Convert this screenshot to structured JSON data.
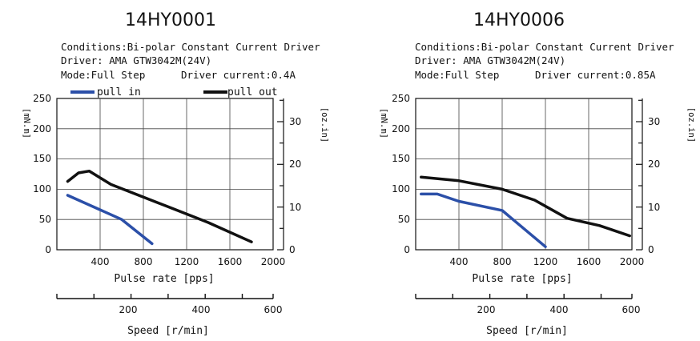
{
  "chart_data": [
    {
      "type": "line",
      "title": "14HY0001",
      "conditions": [
        "Conditions:Bi-polar Constant Current Driver",
        "Driver: AMA GTW3042M(24V)",
        "Mode:Full Step",
        "Driver current:0.4A"
      ],
      "xlabel": "Pulse rate [pps]",
      "ylabel_left": "[mN.m]",
      "ylabel_right": "[oz.in]",
      "speed_label": "Speed [r/min]",
      "xlim": [
        0,
        2000
      ],
      "ylim": [
        0,
        250
      ],
      "x_ticks": [
        "400",
        "800",
        "1200",
        "1600",
        "2000"
      ],
      "y_ticks": [
        "0",
        "50",
        "100",
        "150",
        "200",
        "250"
      ],
      "right_ticks": [
        "0",
        "10",
        "20",
        "30"
      ],
      "speed_ticks": [
        "200",
        "400",
        "600"
      ],
      "legend": [
        {
          "label": "pull in",
          "color": "#2b4fa8"
        },
        {
          "label": "pull out",
          "color": "#111111"
        }
      ],
      "series": [
        {
          "name": "pull in",
          "color": "#2b4fa8",
          "x": [
            100,
            600,
            880
          ],
          "y": [
            90,
            50,
            10
          ]
        },
        {
          "name": "pull out",
          "color": "#111111",
          "x": [
            100,
            200,
            300,
            500,
            1000,
            1400,
            1800
          ],
          "y": [
            113,
            127,
            130,
            108,
            73,
            45,
            13
          ]
        }
      ]
    },
    {
      "type": "line",
      "title": "14HY0006",
      "conditions": [
        "Conditions:Bi-polar Constant Current Driver",
        "Driver: AMA GTW3042M(24V)",
        "Mode:Full Step",
        "Driver current:0.85A"
      ],
      "xlabel": "Pulse rate [pps]",
      "ylabel_left": "[mN.m]",
      "ylabel_right": "[oz.in]",
      "speed_label": "Speed [r/min]",
      "xlim": [
        0,
        2000
      ],
      "ylim": [
        0,
        250
      ],
      "x_ticks": [
        "400",
        "800",
        "1200",
        "1600",
        "2000"
      ],
      "y_ticks": [
        "0",
        "50",
        "100",
        "150",
        "200",
        "250"
      ],
      "right_ticks": [
        "0",
        "10",
        "20",
        "30"
      ],
      "speed_ticks": [
        "200",
        "400",
        "600"
      ],
      "series": [
        {
          "name": "pull in",
          "color": "#2b4fa8",
          "x": [
            50,
            200,
            400,
            800,
            1200
          ],
          "y": [
            92,
            92,
            80,
            65,
            5
          ]
        },
        {
          "name": "pull out",
          "color": "#111111",
          "x": [
            50,
            400,
            800,
            1100,
            1400,
            1700,
            1980
          ],
          "y": [
            120,
            114,
            100,
            82,
            52,
            40,
            23
          ]
        }
      ]
    }
  ]
}
